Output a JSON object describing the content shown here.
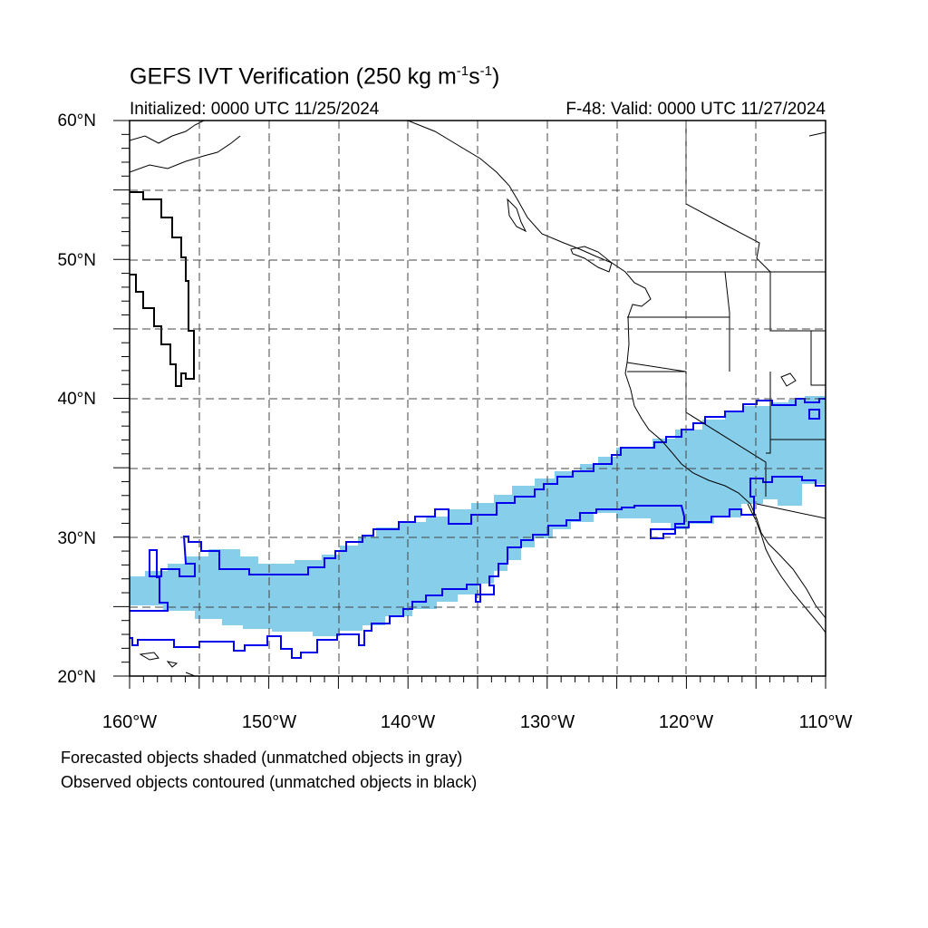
{
  "title": {
    "main": "GEFS IVT Verification (250 kg m",
    "sup1": "-1",
    "mid": "s",
    "sup2": "-1",
    "end": ")"
  },
  "init_label": "Initialized: 0000 UTC 11/25/2024",
  "valid_label": "F-48: Valid: 0000 UTC 11/27/2024",
  "lat_labels": [
    "60°N",
    "50°N",
    "40°N",
    "30°N",
    "20°N"
  ],
  "lon_labels": [
    "160°W",
    "150°W",
    "140°W",
    "130°W",
    "120°W",
    "110°W"
  ],
  "caption_forecast": "Forecasted objects shaded (unmatched objects in gray)",
  "caption_observed": "Observed objects contoured (unmatched objects in black)",
  "colors": {
    "forecast_fill": "#87ceeb",
    "observed_contour": "#0000ee",
    "unmatched_observed": "#000000",
    "grid": "#444444"
  },
  "map_extent": {
    "lon_min": -160,
    "lon_max": -110,
    "lat_min": 20,
    "lat_max": 60
  }
}
